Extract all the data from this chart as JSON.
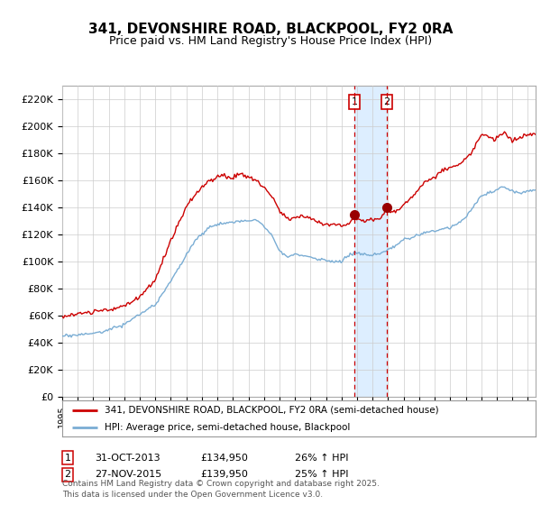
{
  "title": "341, DEVONSHIRE ROAD, BLACKPOOL, FY2 0RA",
  "subtitle": "Price paid vs. HM Land Registry's House Price Index (HPI)",
  "ylabel_ticks": [
    "£0",
    "£20K",
    "£40K",
    "£60K",
    "£80K",
    "£100K",
    "£120K",
    "£140K",
    "£160K",
    "£180K",
    "£200K",
    "£220K"
  ],
  "ytick_values": [
    0,
    20000,
    40000,
    60000,
    80000,
    100000,
    120000,
    140000,
    160000,
    180000,
    200000,
    220000
  ],
  "ylim": [
    0,
    230000
  ],
  "xlim_start": 1995.0,
  "xlim_end": 2025.5,
  "sale1_x": 2013.83,
  "sale1_y": 134950,
  "sale2_x": 2015.92,
  "sale2_y": 139950,
  "red_color": "#cc0000",
  "blue_color": "#7aadd4",
  "shade_color": "#ddeeff",
  "marker_color": "#990000",
  "vline_color": "#cc0000",
  "legend_label1": "341, DEVONSHIRE ROAD, BLACKPOOL, FY2 0RA (semi-detached house)",
  "legend_label2": "HPI: Average price, semi-detached house, Blackpool",
  "table_entries": [
    {
      "num": "1",
      "date": "31-OCT-2013",
      "price": "£134,950",
      "hpi": "26% ↑ HPI"
    },
    {
      "num": "2",
      "date": "27-NOV-2015",
      "price": "£139,950",
      "hpi": "25% ↑ HPI"
    }
  ],
  "footnote": "Contains HM Land Registry data © Crown copyright and database right 2025.\nThis data is licensed under the Open Government Licence v3.0.",
  "background_color": "#ffffff",
  "grid_color": "#cccccc"
}
